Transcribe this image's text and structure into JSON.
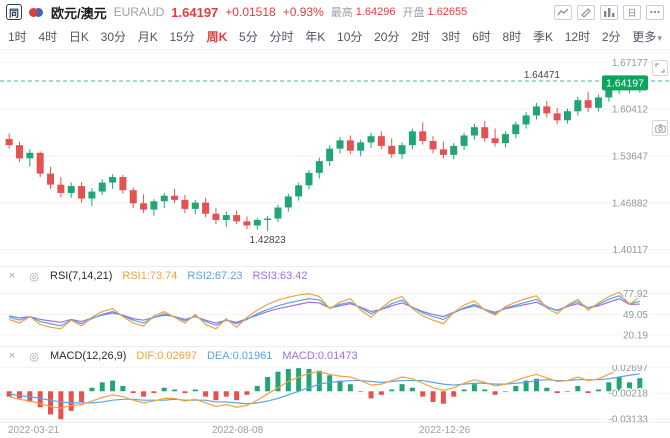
{
  "header": {
    "logo": "同",
    "pair_name": "欧元/澳元",
    "pair_code": "EURAUD",
    "price": "1.64197",
    "change": "+0.01518",
    "change_pct": "+0.93%",
    "high_label": "最高",
    "high_value": "1.64296",
    "open_label": "开盘",
    "open_value": "1.62655"
  },
  "tabs": [
    "1时",
    "4时",
    "日K",
    "30分",
    "月K",
    "15分",
    "周K",
    "5分",
    "分时",
    "年K",
    "10分",
    "20分",
    "2时",
    "3时",
    "6时",
    "8时",
    "季K",
    "12时",
    "2分",
    "更多"
  ],
  "tabs_selected": "周K",
  "colors": {
    "text_up": "#e8393d",
    "candle_up": "#21a576",
    "candle_down": "#e45151",
    "badge": "#0ba55e",
    "dashed": "#45b8a3",
    "grid": "#f2f2f2",
    "axis_text": "#8f959e",
    "rsi1": "#f0a23f",
    "rsi2": "#57a5e5",
    "rsi3": "#9f6ede"
  },
  "rsi": {
    "title": "RSI(7,14,21)",
    "v1": "RSI1:73.74",
    "v2": "RSI2:67.23",
    "v3": "RSI3:63.42"
  },
  "macd": {
    "title": "MACD(12,26,9)",
    "dif": "DIF:0.02697",
    "dea": "DEA:0.01961",
    "macd": "MACD:0.01473"
  },
  "chart_data": [
    {
      "type": "candlestick",
      "title": "EURAUD weekly (周K)",
      "ylim": [
        1.3775,
        1.6895
      ],
      "y_ticks": [
        1.67177,
        1.60412,
        1.53647,
        1.46882,
        1.40117
      ],
      "current_price": 1.64197,
      "high_line": 1.64471,
      "low_annotation": {
        "index": 25,
        "value": 1.42823
      },
      "x_tick_labels": [
        "2022-03-21",
        "2022-08-08",
        "2022-12-26"
      ],
      "x_tick_indexes": [
        0,
        20,
        40
      ],
      "ohlc": [
        [
          1.561,
          1.569,
          1.547,
          1.552
        ],
        [
          1.552,
          1.557,
          1.528,
          1.533
        ],
        [
          1.533,
          1.546,
          1.521,
          1.541
        ],
        [
          1.541,
          1.543,
          1.506,
          1.511
        ],
        [
          1.511,
          1.521,
          1.489,
          1.495
        ],
        [
          1.495,
          1.506,
          1.477,
          1.483
        ],
        [
          1.483,
          1.498,
          1.476,
          1.493
        ],
        [
          1.493,
          1.499,
          1.469,
          1.475
        ],
        [
          1.475,
          1.49,
          1.464,
          1.485
        ],
        [
          1.485,
          1.503,
          1.48,
          1.498
        ],
        [
          1.498,
          1.51,
          1.489,
          1.506
        ],
        [
          1.506,
          1.509,
          1.482,
          1.487
        ],
        [
          1.487,
          1.491,
          1.461,
          1.468
        ],
        [
          1.468,
          1.481,
          1.454,
          1.459
        ],
        [
          1.459,
          1.474,
          1.45,
          1.471
        ],
        [
          1.471,
          1.483,
          1.461,
          1.479
        ],
        [
          1.479,
          1.489,
          1.468,
          1.473
        ],
        [
          1.473,
          1.48,
          1.454,
          1.46
        ],
        [
          1.46,
          1.473,
          1.452,
          1.469
        ],
        [
          1.469,
          1.476,
          1.448,
          1.453
        ],
        [
          1.453,
          1.461,
          1.438,
          1.444
        ],
        [
          1.444,
          1.456,
          1.434,
          1.451
        ],
        [
          1.451,
          1.458,
          1.438,
          1.442
        ],
        [
          1.442,
          1.449,
          1.431,
          1.436
        ],
        [
          1.436,
          1.447,
          1.43,
          1.444
        ],
        [
          1.444,
          1.45,
          1.42823,
          1.446
        ],
        [
          1.446,
          1.466,
          1.441,
          1.462
        ],
        [
          1.462,
          1.482,
          1.456,
          1.478
        ],
        [
          1.478,
          1.498,
          1.472,
          1.494
        ],
        [
          1.494,
          1.516,
          1.488,
          1.512
        ],
        [
          1.512,
          1.534,
          1.504,
          1.529
        ],
        [
          1.529,
          1.552,
          1.522,
          1.547
        ],
        [
          1.547,
          1.564,
          1.54,
          1.559
        ],
        [
          1.559,
          1.566,
          1.539,
          1.544
        ],
        [
          1.544,
          1.56,
          1.536,
          1.556
        ],
        [
          1.556,
          1.57,
          1.548,
          1.565
        ],
        [
          1.565,
          1.572,
          1.546,
          1.551
        ],
        [
          1.551,
          1.562,
          1.534,
          1.539
        ],
        [
          1.539,
          1.556,
          1.532,
          1.552
        ],
        [
          1.552,
          1.576,
          1.546,
          1.572
        ],
        [
          1.572,
          1.585,
          1.553,
          1.558
        ],
        [
          1.558,
          1.565,
          1.54,
          1.546
        ],
        [
          1.546,
          1.557,
          1.533,
          1.538
        ],
        [
          1.538,
          1.555,
          1.532,
          1.551
        ],
        [
          1.551,
          1.57,
          1.545,
          1.566
        ],
        [
          1.566,
          1.583,
          1.56,
          1.578
        ],
        [
          1.578,
          1.587,
          1.557,
          1.562
        ],
        [
          1.562,
          1.576,
          1.55,
          1.555
        ],
        [
          1.555,
          1.572,
          1.549,
          1.568
        ],
        [
          1.568,
          1.586,
          1.562,
          1.582
        ],
        [
          1.582,
          1.6,
          1.576,
          1.595
        ],
        [
          1.595,
          1.613,
          1.589,
          1.608
        ],
        [
          1.608,
          1.616,
          1.592,
          1.598
        ],
        [
          1.598,
          1.606,
          1.582,
          1.588
        ],
        [
          1.588,
          1.605,
          1.583,
          1.601
        ],
        [
          1.601,
          1.622,
          1.595,
          1.617
        ],
        [
          1.617,
          1.629,
          1.6,
          1.606
        ],
        [
          1.606,
          1.625,
          1.601,
          1.621
        ],
        [
          1.621,
          1.642,
          1.615,
          1.637
        ],
        [
          1.637,
          1.64471,
          1.626,
          1.641
        ],
        [
          1.641,
          1.6438,
          1.627,
          1.632
        ],
        [
          1.632,
          1.64296,
          1.628,
          1.64197
        ]
      ]
    },
    {
      "type": "line",
      "title": "RSI(7,14,21)",
      "ylim": [
        5,
        90
      ],
      "y_ticks": [
        77.92,
        49.05,
        20.19
      ],
      "series": [
        {
          "name": "RSI1",
          "color": "#f0a23f",
          "values": [
            42,
            37,
            46,
            35,
            31,
            29,
            41,
            33,
            45,
            53,
            57,
            46,
            37,
            33,
            47,
            53,
            45,
            37,
            49,
            35,
            29,
            43,
            31,
            45,
            55,
            63,
            69,
            73,
            76,
            78,
            74,
            57,
            66,
            71,
            55,
            45,
            58,
            69,
            74,
            57,
            47,
            41,
            36,
            52,
            62,
            68,
            55,
            48,
            60,
            66,
            71,
            75,
            58,
            50,
            62,
            70,
            55,
            65,
            74,
            80,
            63,
            73.74
          ]
        },
        {
          "name": "RSI2",
          "color": "#57a5e5",
          "values": [
            45,
            41,
            46,
            39,
            36,
            33,
            41,
            36,
            43,
            49,
            53,
            47,
            41,
            37,
            45,
            50,
            46,
            40,
            47,
            39,
            34,
            41,
            36,
            42,
            50,
            56,
            61,
            65,
            68,
            71,
            69,
            58,
            63,
            66,
            58,
            50,
            56,
            64,
            69,
            59,
            51,
            46,
            42,
            51,
            58,
            63,
            56,
            50,
            58,
            62,
            66,
            70,
            60,
            54,
            61,
            67,
            58,
            63,
            70,
            75,
            64,
            67.23
          ]
        },
        {
          "name": "RSI3",
          "color": "#9f6ede",
          "values": [
            47,
            44,
            46,
            42,
            40,
            38,
            42,
            39,
            44,
            48,
            51,
            48,
            43,
            41,
            45,
            48,
            46,
            42,
            46,
            41,
            37,
            41,
            38,
            43,
            48,
            53,
            57,
            60,
            63,
            66,
            65,
            58,
            61,
            64,
            59,
            53,
            56,
            61,
            65,
            59,
            53,
            49,
            46,
            52,
            57,
            61,
            56,
            52,
            57,
            60,
            63,
            66,
            59,
            55,
            60,
            64,
            58,
            61,
            66,
            71,
            63,
            63.42
          ]
        }
      ]
    },
    {
      "type": "macd",
      "title": "MACD(12,26,9)",
      "ylim": [
        -0.0345,
        0.0295
      ],
      "y_ticks": [
        0.02697,
        -0.00218,
        -0.03133
      ],
      "dif": [
        -0.006,
        -0.009,
        -0.011,
        -0.014,
        -0.017,
        -0.019,
        -0.016,
        -0.015,
        -0.011,
        -0.007,
        -0.004,
        -0.006,
        -0.01,
        -0.013,
        -0.011,
        -0.008,
        -0.008,
        -0.011,
        -0.009,
        -0.013,
        -0.017,
        -0.015,
        -0.018,
        -0.016,
        -0.01,
        -0.003,
        0.004,
        0.011,
        0.016,
        0.02,
        0.022,
        0.019,
        0.017,
        0.016,
        0.012,
        0.007,
        0.008,
        0.012,
        0.016,
        0.014,
        0.009,
        0.004,
        0.001,
        0.004,
        0.009,
        0.013,
        0.01,
        0.006,
        0.008,
        0.012,
        0.016,
        0.019,
        0.015,
        0.011,
        0.012,
        0.016,
        0.012,
        0.014,
        0.019,
        0.024,
        0.023,
        0.02697
      ],
      "dea": [
        -0.003,
        -0.005,
        -0.006,
        -0.008,
        -0.01,
        -0.012,
        -0.013,
        -0.013,
        -0.013,
        -0.012,
        -0.01,
        -0.009,
        -0.009,
        -0.01,
        -0.01,
        -0.01,
        -0.009,
        -0.01,
        -0.01,
        -0.01,
        -0.012,
        -0.012,
        -0.013,
        -0.014,
        -0.013,
        -0.011,
        -0.008,
        -0.004,
        0.0,
        0.004,
        0.008,
        0.01,
        0.011,
        0.012,
        0.012,
        0.011,
        0.01,
        0.011,
        0.012,
        0.012,
        0.012,
        0.01,
        0.008,
        0.007,
        0.008,
        0.009,
        0.009,
        0.008,
        0.008,
        0.009,
        0.01,
        0.012,
        0.013,
        0.012,
        0.012,
        0.013,
        0.013,
        0.013,
        0.014,
        0.016,
        0.018,
        0.01961
      ],
      "hist": [
        -0.006,
        -0.008,
        -0.012,
        -0.018,
        -0.026,
        -0.03133,
        -0.022,
        -0.012,
        0.004,
        0.01,
        0.012,
        0.006,
        -0.002,
        -0.006,
        -0.002,
        0.004,
        0.002,
        -0.002,
        0.002,
        -0.006,
        -0.01,
        -0.006,
        -0.01,
        -0.004,
        0.006,
        0.016,
        0.022,
        0.025,
        0.026,
        0.025,
        0.023,
        0.018,
        0.012,
        0.008,
        0.0,
        -0.008,
        -0.004,
        0.002,
        0.008,
        0.004,
        -0.006,
        -0.012,
        -0.014,
        -0.006,
        0.002,
        0.008,
        0.002,
        -0.004,
        0.0,
        0.006,
        0.012,
        0.014,
        0.004,
        -0.002,
        0.0,
        0.006,
        -0.002,
        0.002,
        0.01,
        0.016,
        0.01,
        0.01473
      ]
    }
  ]
}
